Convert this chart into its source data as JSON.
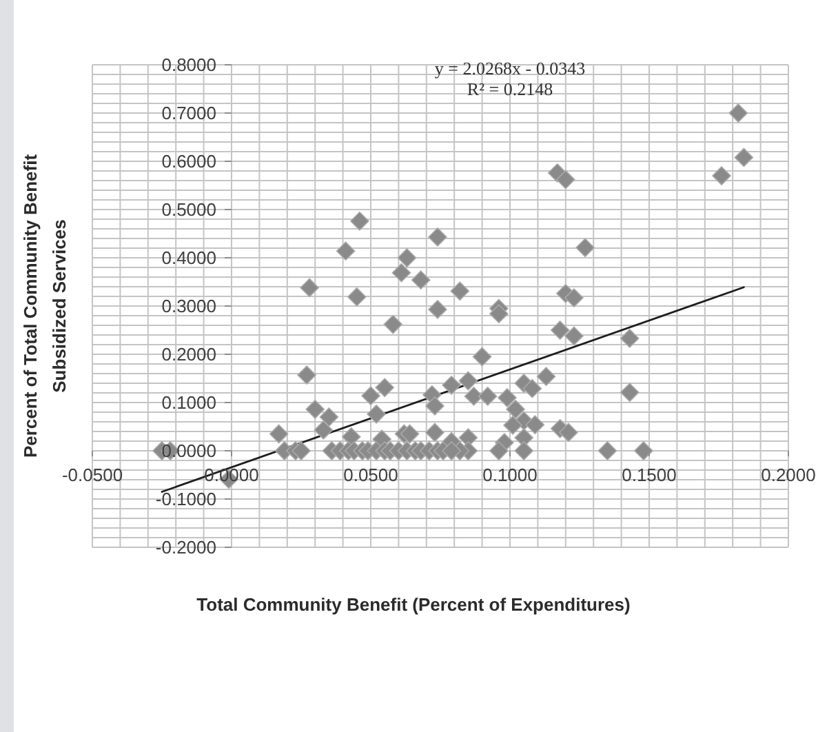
{
  "chart_data": {
    "type": "scatter",
    "xlabel": "Total Community Benefit (Percent of Expenditures)",
    "ylabel": "Percent of Total Community Benefit\nSubsidized Services",
    "annotations": [
      "y = 2.0268x - 0.0343",
      "R² = 0.2148"
    ],
    "xlim": [
      -0.05,
      0.2
    ],
    "xticks": [
      {
        "value": -0.05,
        "label": "-0.0500"
      },
      {
        "value": -0.04,
        "label": null
      },
      {
        "value": -0.03,
        "label": null
      },
      {
        "value": -0.02,
        "label": null
      },
      {
        "value": -0.01,
        "label": null
      },
      {
        "value": 0,
        "label": "0.0000"
      },
      {
        "value": 0.01,
        "label": null
      },
      {
        "value": 0.02,
        "label": null
      },
      {
        "value": 0.03,
        "label": null
      },
      {
        "value": 0.04,
        "label": null
      },
      {
        "value": 0.05,
        "label": "0.0500"
      },
      {
        "value": 0.06,
        "label": null
      },
      {
        "value": 0.07,
        "label": null
      },
      {
        "value": 0.08,
        "label": null
      },
      {
        "value": 0.09,
        "label": null
      },
      {
        "value": 0.1,
        "label": "0.1000"
      },
      {
        "value": 0.11,
        "label": null
      },
      {
        "value": 0.12,
        "label": null
      },
      {
        "value": 0.13,
        "label": null
      },
      {
        "value": 0.14,
        "label": null
      },
      {
        "value": 0.15,
        "label": "0.1500"
      },
      {
        "value": 0.16,
        "label": null
      },
      {
        "value": 0.17,
        "label": null
      },
      {
        "value": 0.18,
        "label": null
      },
      {
        "value": 0.19,
        "label": null
      },
      {
        "value": 0.2,
        "label": "0.2000"
      }
    ],
    "ylim": [
      -0.2,
      0.8
    ],
    "yticks": [
      {
        "value": -0.2,
        "label": "-0.2000"
      },
      {
        "value": -0.18,
        "label": null
      },
      {
        "value": -0.16,
        "label": null
      },
      {
        "value": -0.14,
        "label": null
      },
      {
        "value": -0.12,
        "label": null
      },
      {
        "value": -0.1,
        "label": "-0.1000"
      },
      {
        "value": -0.08,
        "label": null
      },
      {
        "value": -0.06,
        "label": null
      },
      {
        "value": -0.04,
        "label": null
      },
      {
        "value": -0.02,
        "label": null
      },
      {
        "value": 0,
        "label": "0.0000"
      },
      {
        "value": 0.02,
        "label": null
      },
      {
        "value": 0.04,
        "label": null
      },
      {
        "value": 0.06,
        "label": null
      },
      {
        "value": 0.08,
        "label": null
      },
      {
        "value": 0.1,
        "label": "0.1000"
      },
      {
        "value": 0.12,
        "label": null
      },
      {
        "value": 0.14,
        "label": null
      },
      {
        "value": 0.16,
        "label": null
      },
      {
        "value": 0.18,
        "label": null
      },
      {
        "value": 0.2,
        "label": "0.2000"
      },
      {
        "value": 0.22,
        "label": null
      },
      {
        "value": 0.24,
        "label": null
      },
      {
        "value": 0.26,
        "label": null
      },
      {
        "value": 0.28,
        "label": null
      },
      {
        "value": 0.3,
        "label": "0.3000"
      },
      {
        "value": 0.32,
        "label": null
      },
      {
        "value": 0.34,
        "label": null
      },
      {
        "value": 0.36,
        "label": null
      },
      {
        "value": 0.38,
        "label": null
      },
      {
        "value": 0.4,
        "label": "0.4000"
      },
      {
        "value": 0.42,
        "label": null
      },
      {
        "value": 0.44,
        "label": null
      },
      {
        "value": 0.46,
        "label": null
      },
      {
        "value": 0.48,
        "label": null
      },
      {
        "value": 0.5,
        "label": "0.5000"
      },
      {
        "value": 0.52,
        "label": null
      },
      {
        "value": 0.54,
        "label": null
      },
      {
        "value": 0.56,
        "label": null
      },
      {
        "value": 0.58,
        "label": null
      },
      {
        "value": 0.6,
        "label": "0.6000"
      },
      {
        "value": 0.62,
        "label": null
      },
      {
        "value": 0.64,
        "label": null
      },
      {
        "value": 0.66,
        "label": null
      },
      {
        "value": 0.68,
        "label": null
      },
      {
        "value": 0.7,
        "label": "0.7000"
      },
      {
        "value": 0.72,
        "label": null
      },
      {
        "value": 0.74,
        "label": null
      },
      {
        "value": 0.76,
        "label": null
      },
      {
        "value": 0.78,
        "label": null
      },
      {
        "value": 0.8,
        "label": "0.8000"
      }
    ],
    "grid": true,
    "marker": "diamond",
    "series": [
      {
        "type": "scatter",
        "color": "#8a8a8a",
        "x": [
          0.046,
          0.041,
          0.074,
          0.063,
          0.061,
          0.068,
          0.028,
          0.082,
          0.045,
          0.074,
          0.058,
          0.182,
          0.184,
          0.176,
          0.117,
          0.12,
          0.127,
          0.12,
          0.123,
          0.096,
          0.096,
          0.118,
          0.123,
          0.143,
          0.09,
          0.027,
          0.05,
          0.055,
          0.03,
          0.035,
          0.033,
          0.052,
          0.017,
          0.072,
          0.073,
          0.079,
          0.085,
          0.113,
          0.105,
          0.108,
          0.143,
          0.087,
          0.092,
          0.099,
          0.102,
          0.105,
          0.101,
          0.109,
          0.118,
          0.121,
          0.105,
          0.098,
          0.085,
          0.043,
          0.062,
          0.064,
          0.073,
          0.079,
          0.054,
          -0.001,
          -0.025,
          -0.022,
          0.019,
          0.023,
          0.025,
          0.096,
          0.105,
          0.135,
          0.148,
          0.085,
          0.082,
          0.036,
          0.039,
          0.042,
          0.044,
          0.047,
          0.049,
          0.052,
          0.055,
          0.057,
          0.06,
          0.063,
          0.066,
          0.068,
          0.071,
          0.074,
          0.076,
          0.079
        ],
        "values": [
          0.476,
          0.414,
          0.443,
          0.4,
          0.369,
          0.354,
          0.338,
          0.331,
          0.319,
          0.293,
          0.262,
          0.7,
          0.608,
          0.57,
          0.576,
          0.562,
          0.421,
          0.326,
          0.317,
          0.295,
          0.284,
          0.25,
          0.238,
          0.233,
          0.195,
          0.157,
          0.114,
          0.131,
          0.086,
          0.07,
          0.043,
          0.076,
          0.035,
          0.116,
          0.093,
          0.136,
          0.145,
          0.154,
          0.14,
          0.129,
          0.121,
          0.113,
          0.113,
          0.11,
          0.086,
          0.062,
          0.053,
          0.054,
          0.046,
          0.038,
          0.027,
          0.017,
          0.027,
          0.029,
          0.035,
          0.035,
          0.038,
          0.019,
          0.024,
          -0.059,
          0,
          0,
          0,
          0,
          0,
          0,
          0,
          0,
          0,
          0,
          0,
          0,
          0,
          0,
          0,
          0,
          0,
          0,
          0,
          0,
          0,
          0,
          0,
          0,
          0,
          0,
          0,
          0
        ]
      },
      {
        "type": "line",
        "color": "#1e1e1e",
        "marker": "none",
        "line_style": "solid",
        "x": [
          -0.025,
          0.184
        ],
        "values": [
          -0.085,
          0.339
        ]
      }
    ]
  }
}
